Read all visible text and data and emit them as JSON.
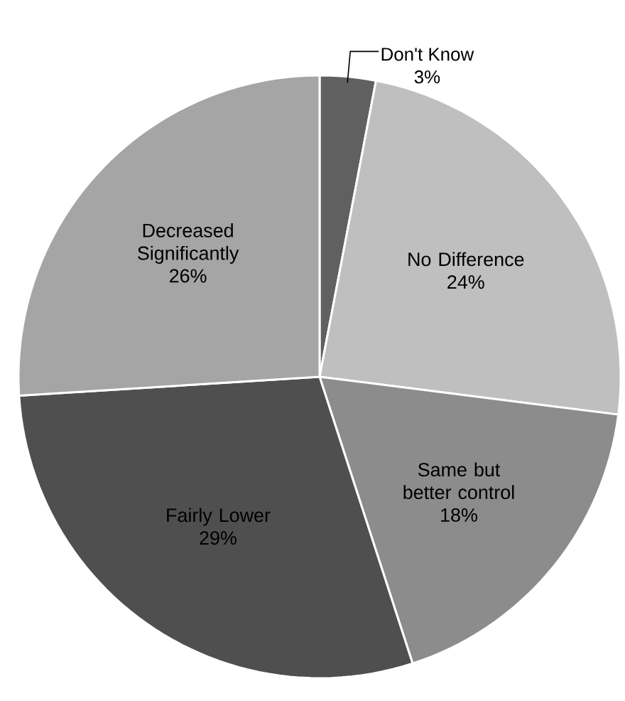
{
  "chart_data": {
    "type": "pie",
    "categories": [
      "Don't Know",
      "No Difference",
      "Same but better control",
      "Fairly Lower",
      "Decreased Significantly"
    ],
    "values": [
      3,
      24,
      18,
      29,
      26
    ],
    "value_labels": [
      "3%",
      "24%",
      "18%",
      "29%",
      "26%"
    ],
    "colors": [
      "#606060",
      "#bfbfbf",
      "#8c8c8c",
      "#4f4f4f",
      "#a5a5a5"
    ]
  }
}
